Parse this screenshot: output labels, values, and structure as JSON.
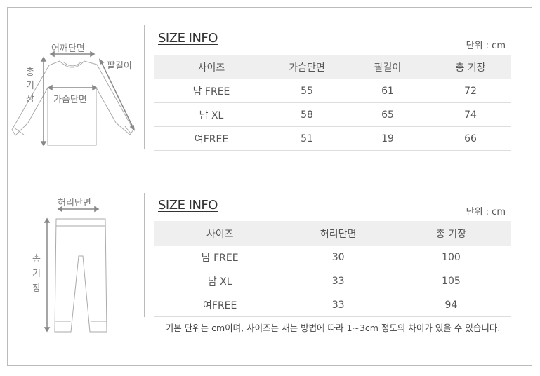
{
  "top": {
    "labels": {
      "shoulder": "어깨단면",
      "sleeve": "팔길이",
      "total": [
        "총",
        "기",
        "장"
      ],
      "chest": "가슴단면"
    },
    "title": "SIZE INFO",
    "unit": "단위 : cm",
    "headers": [
      "사이즈",
      "가슴단면",
      "팔길이",
      "총 기장"
    ],
    "rows": [
      [
        "남 FREE",
        "55",
        "61",
        "72"
      ],
      [
        "남 XL",
        "58",
        "65",
        "74"
      ],
      [
        "여FREE",
        "51",
        "19",
        "66"
      ]
    ]
  },
  "bottom": {
    "labels": {
      "waist": "허리단면",
      "total": [
        "총",
        "기",
        "장"
      ]
    },
    "title": "SIZE INFO",
    "unit": "단위 : cm",
    "headers": [
      "사이즈",
      "허리단면",
      "총 기장"
    ],
    "rows": [
      [
        "남 FREE",
        "30",
        "100"
      ],
      [
        "남 XL",
        "33",
        "105"
      ],
      [
        "여FREE",
        "33",
        "94"
      ]
    ],
    "note": "기본 단위는 cm이며, 사이즈는 재는 방법에 따라 1~3cm 정도의 차이가 있을 수 있습니다."
  }
}
